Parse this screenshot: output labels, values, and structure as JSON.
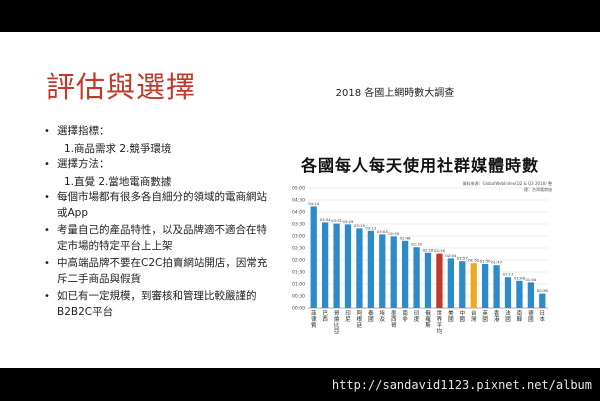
{
  "slide": {
    "title": "評估與選擇",
    "chart_caption": "2018 各國上網時數大調查",
    "bullets": [
      {
        "text": "選擇指標：",
        "subs": [
          "1.商品需求 2.競爭環境"
        ]
      },
      {
        "text": "選擇方法：",
        "subs": [
          "1.直覺 2.當地電商數據"
        ]
      },
      {
        "text": "每個市場都有很多各自細分的領域的電商網站或App",
        "subs": []
      },
      {
        "text": "考量自己的產品特性，以及品牌適不適合在特定市場的特定平台上上架",
        "subs": []
      },
      {
        "text": "中高端品牌不要在C2C拍賣網站開店，因常充斥二手商品與假貨",
        "subs": []
      },
      {
        "text": "如已有一定規模，到審核和管理比較嚴謹的B2B2C平台",
        "subs": []
      }
    ],
    "bullet_glyph": "•"
  },
  "watermark": "http://sandavid1123.pixnet.net/album",
  "chart_data": {
    "type": "bar",
    "title": "各國每人每天使用社群媒體時數",
    "source": "資料來源：GlobalWebIndex(Q2 & Q3 2018) 整理：台灣電商協",
    "categories": [
      "菲律賓",
      "巴西",
      "哥倫比亞",
      "印尼",
      "阿根廷",
      "泰國",
      "埃及",
      "墨西哥",
      "南非",
      "印度",
      "俄羅斯",
      "世界平均",
      "美國",
      "中國",
      "台灣",
      "英國",
      "香港",
      "法國",
      "南韓",
      "德國",
      "日本"
    ],
    "labels": [
      "04:14",
      "03:34",
      "03:31",
      "03:29",
      "03:19",
      "03:13",
      "03:04",
      "02:59",
      "02:48",
      "02:32",
      "02:18",
      "02:16",
      "02:04",
      "01:57",
      "01:52",
      "01:50",
      "01:47",
      "01:17",
      "01:08",
      "01:04",
      "00:36"
    ],
    "values_hours": [
      4.233,
      3.567,
      3.517,
      3.483,
      3.317,
      3.217,
      3.067,
      2.983,
      2.8,
      2.533,
      2.3,
      2.267,
      2.067,
      1.95,
      1.867,
      1.833,
      1.783,
      1.283,
      1.133,
      1.067,
      0.6
    ],
    "highlight": {
      "世界平均": "#c0392b",
      "台灣": "#f2a81d"
    },
    "bar_color": "#2e8bc9",
    "y_ticks": [
      "00:00",
      "00:30",
      "01:00",
      "01:30",
      "02:00",
      "02:30",
      "03:00",
      "03:30",
      "04:00",
      "04:30",
      "05:00"
    ],
    "ylim_hours": [
      0,
      5
    ],
    "grid": true
  }
}
